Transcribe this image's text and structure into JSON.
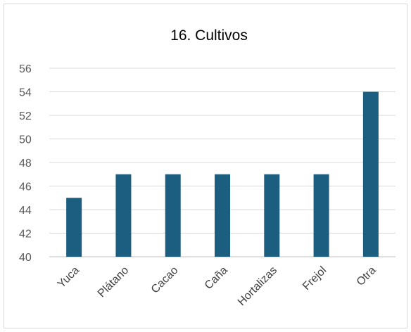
{
  "chart_data": {
    "type": "bar",
    "title": "16. Cultivos",
    "categories": [
      "Yuca",
      "Plátano",
      "Cacao",
      "Caña",
      "Hortalizas",
      "Frejol",
      "Otra"
    ],
    "values": [
      45,
      47,
      47,
      47,
      47,
      47,
      54
    ],
    "ylim": [
      40,
      56
    ],
    "yticks": [
      40,
      42,
      44,
      46,
      48,
      50,
      52,
      54,
      56
    ],
    "grid": true,
    "legend": "none",
    "bar_color": "#1b5e80"
  }
}
